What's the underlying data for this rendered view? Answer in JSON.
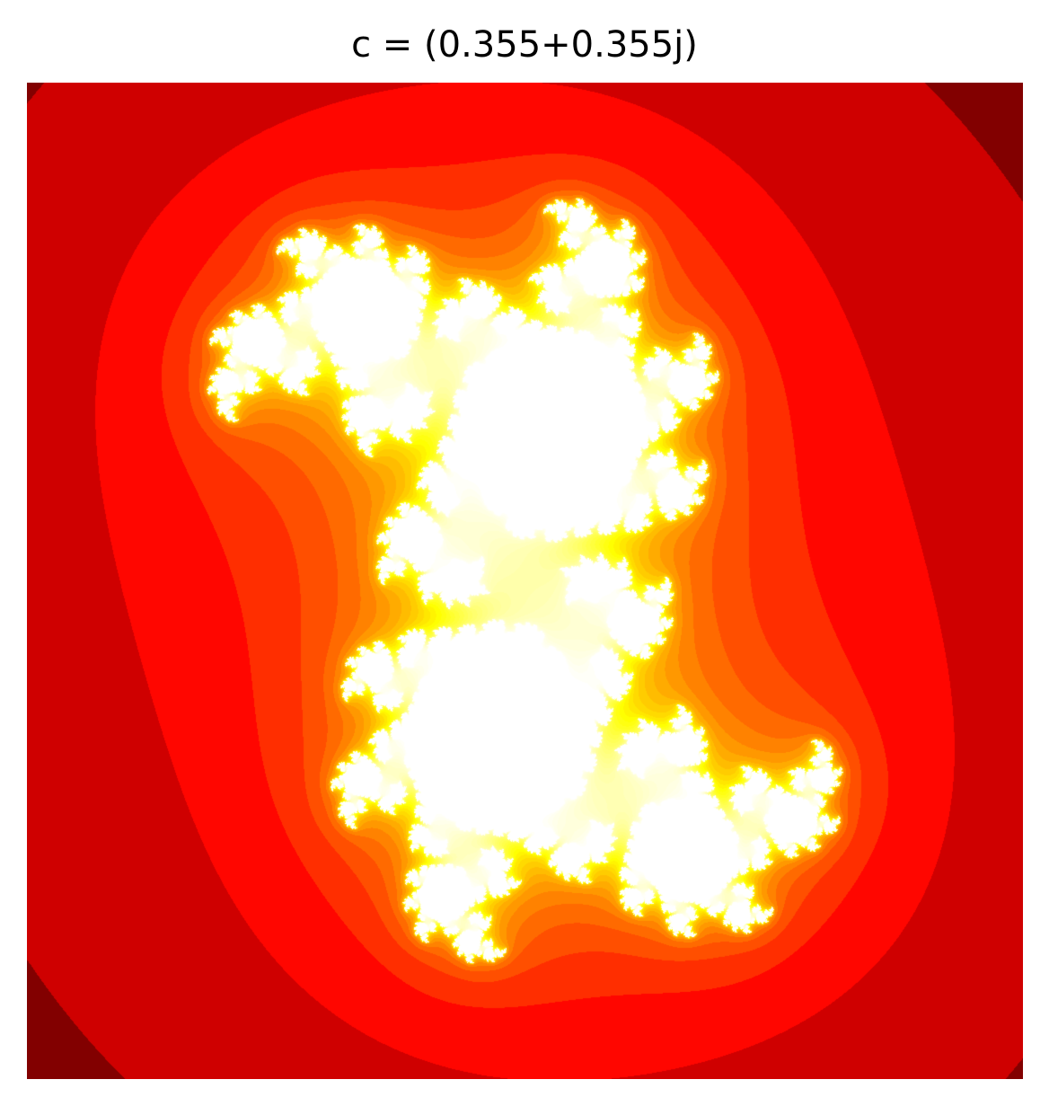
{
  "figure": {
    "title": "c = (0.355+0.355j)"
  },
  "fractal": {
    "type": "julia-set",
    "c_real": 0.355,
    "c_imag": 0.355,
    "colormap": "hot",
    "axes_visible": false
  }
}
